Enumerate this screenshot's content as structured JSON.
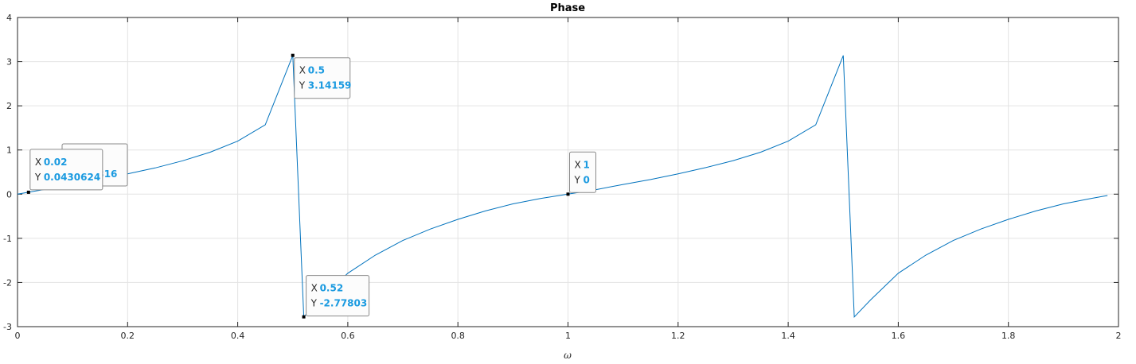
{
  "chart_data": {
    "type": "line",
    "title": "Phase",
    "xlabel": "ω",
    "ylabel": "",
    "xlim": [
      0,
      2
    ],
    "ylim": [
      -3,
      4
    ],
    "xticks": [
      0,
      0.2,
      0.4,
      0.6,
      0.8,
      1,
      1.2,
      1.4,
      1.6,
      1.8,
      2
    ],
    "xtick_labels": [
      "0",
      "0.2",
      "0.4",
      "0.6",
      "0.8",
      "1",
      "1.2",
      "1.4",
      "1.6",
      "1.8",
      "2"
    ],
    "yticks": [
      -3,
      -2,
      -1,
      0,
      1,
      2,
      3,
      4
    ],
    "ytick_labels": [
      "-3",
      "-2",
      "-1",
      "0",
      "1",
      "2",
      "3",
      "4"
    ],
    "grid": true,
    "line_color": "#0072bd",
    "series": [
      {
        "x": [
          0,
          0.02,
          0.05,
          0.1,
          0.15,
          0.2,
          0.25,
          0.3,
          0.35,
          0.4,
          0.45,
          0.5,
          0.52,
          0.55,
          0.6,
          0.65,
          0.7,
          0.75,
          0.8,
          0.85,
          0.9,
          0.95,
          1,
          1.05,
          1.1,
          1.15,
          1.2,
          1.25,
          1.3,
          1.35,
          1.4,
          1.45,
          1.5,
          1.52,
          1.55,
          1.6,
          1.65,
          1.7,
          1.75,
          1.8,
          1.85,
          1.9,
          1.95,
          1.98
        ],
        "y": [
          0,
          0.043,
          0.108,
          0.218,
          0.333,
          0.458,
          0.593,
          0.755,
          0.95,
          1.2,
          1.57,
          3.14159,
          -2.77803,
          -2.39,
          -1.79,
          -1.38,
          -1.05,
          -0.79,
          -0.57,
          -0.38,
          -0.22,
          -0.1,
          0,
          0.1,
          0.22,
          0.33,
          0.46,
          0.6,
          0.76,
          0.95,
          1.2,
          1.57,
          3.14,
          -2.78,
          -2.39,
          -1.79,
          -1.38,
          -1.05,
          -0.79,
          -0.57,
          -0.38,
          -0.22,
          -0.1,
          -0.03
        ]
      }
    ],
    "datatips": [
      {
        "x_key": "X",
        "x_value": "0.02",
        "y_key": "Y",
        "y_value": "0.0430624",
        "px": 0.02,
        "py": 0.043
      },
      {
        "x_key": "X",
        "x_value": "0.5",
        "y_key": "Y",
        "y_value": "3.14159",
        "px": 0.5,
        "py": 3.14159
      },
      {
        "x_key": "X",
        "x_value": "0.52",
        "y_key": "Y",
        "y_value": "-2.77803",
        "px": 0.52,
        "py": -2.77803
      },
      {
        "x_key": "X",
        "x_value": "1",
        "y_key": "Y",
        "y_value": "0",
        "px": 1,
        "py": 0
      }
    ],
    "hidden_datatip_fragment": "5316"
  }
}
